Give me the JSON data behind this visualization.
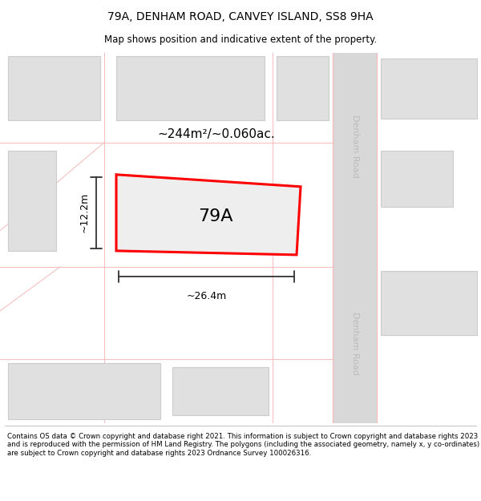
{
  "title": "79A, DENHAM ROAD, CANVEY ISLAND, SS8 9HA",
  "subtitle": "Map shows position and indicative extent of the property.",
  "footer": "Contains OS data © Crown copyright and database right 2021. This information is subject to Crown copyright and database rights 2023 and is reproduced with the permission of HM Land Registry. The polygons (including the associated geometry, namely x, y co-ordinates) are subject to Crown copyright and database rights 2023 Ordnance Survey 100026316.",
  "bg_color": "#ffffff",
  "map_bg": "#f0f0f0",
  "building_fill": "#e0e0e0",
  "building_edge": "#cccccc",
  "road_fill": "#d8d8d8",
  "road_border": "#f5c0c0",
  "plot_fill": "#eeeeee",
  "plot_edge": "#ff0000",
  "area_text": "~244m²/~0.060ac.",
  "plot_label": "79A",
  "dim_width": "~26.4m",
  "dim_height": "~12.2m",
  "road_label": "Denham Road",
  "road_label2": "Denham Road"
}
